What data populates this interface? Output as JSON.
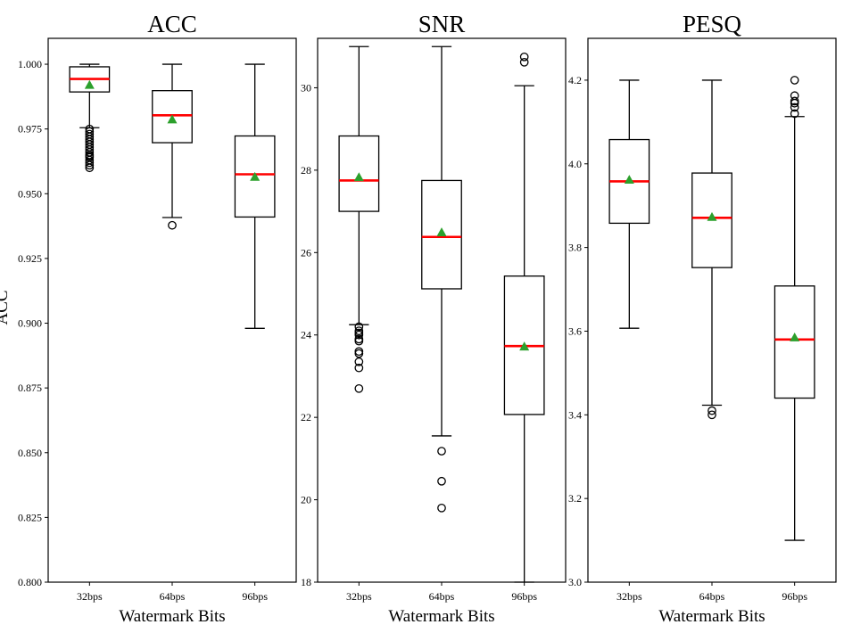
{
  "chart_data": [
    {
      "type": "box",
      "title": "ACC",
      "xlabel": "Watermark Bits",
      "ylabel": "ACC",
      "ylim": [
        0.8,
        1.01
      ],
      "yticks": [
        0.8,
        0.825,
        0.85,
        0.875,
        0.9,
        0.925,
        0.95,
        0.975,
        1.0
      ],
      "ytick_labels": [
        "0.800",
        "0.825",
        "0.850",
        "0.875",
        "0.900",
        "0.925",
        "0.950",
        "0.975",
        "1.000"
      ],
      "categories": [
        "32bps",
        "64bps",
        "96bps"
      ],
      "boxes": [
        {
          "label": "32bps",
          "whisker_low": 0.9755,
          "q1": 0.9893,
          "median": 0.9943,
          "q3": 0.999,
          "whisker_high": 1.0,
          "mean": 0.992,
          "outliers": [
            0.96,
            0.961,
            0.962,
            0.963,
            0.964,
            0.9645,
            0.965,
            0.966,
            0.967,
            0.968,
            0.969,
            0.97,
            0.971,
            0.972,
            0.973,
            0.974,
            0.975
          ]
        },
        {
          "label": "64bps",
          "whisker_low": 0.9408,
          "q1": 0.9697,
          "median": 0.9803,
          "q3": 0.9898,
          "whisker_high": 1.0,
          "mean": 0.9787,
          "outliers": [
            0.9378
          ]
        },
        {
          "label": "96bps",
          "whisker_low": 0.898,
          "q1": 0.941,
          "median": 0.9575,
          "q3": 0.9723,
          "whisker_high": 1.0,
          "mean": 0.9565,
          "outliers": []
        }
      ]
    },
    {
      "type": "box",
      "title": "SNR",
      "xlabel": "Watermark Bits",
      "ylabel": "",
      "ylim": [
        18,
        31.2
      ],
      "yticks": [
        18,
        20,
        22,
        24,
        26,
        28,
        30
      ],
      "ytick_labels": [
        "18",
        "20",
        "22",
        "24",
        "26",
        "28",
        "30"
      ],
      "categories": [
        "32bps",
        "64bps",
        "96bps"
      ],
      "boxes": [
        {
          "label": "32bps",
          "whisker_low": 24.25,
          "q1": 27.0,
          "median": 27.75,
          "q3": 28.83,
          "whisker_high": 31.0,
          "mean": 27.83,
          "outliers": [
            24.2,
            24.1,
            24.05,
            24.0,
            23.9,
            23.85,
            23.6,
            23.55,
            23.35,
            23.2,
            22.7
          ]
        },
        {
          "label": "64bps",
          "whisker_low": 21.55,
          "q1": 25.12,
          "median": 26.38,
          "q3": 27.75,
          "whisker_high": 31.0,
          "mean": 26.49,
          "outliers": [
            21.18,
            20.45,
            19.8
          ]
        },
        {
          "label": "96bps",
          "whisker_low": 18.0,
          "q1": 22.07,
          "median": 23.73,
          "q3": 25.43,
          "whisker_high": 30.05,
          "mean": 23.72,
          "outliers": [
            30.62,
            30.75
          ]
        }
      ]
    },
    {
      "type": "box",
      "title": "PESQ",
      "xlabel": "Watermark Bits",
      "ylabel": "",
      "ylim": [
        3.0,
        4.3
      ],
      "yticks": [
        3.0,
        3.2,
        3.4,
        3.6,
        3.8,
        4.0,
        4.2
      ],
      "ytick_labels": [
        "3.0",
        "3.2",
        "3.4",
        "3.6",
        "3.8",
        "4.0",
        "4.2"
      ],
      "categories": [
        "32bps",
        "64bps",
        "96bps"
      ],
      "boxes": [
        {
          "label": "32bps",
          "whisker_low": 3.607,
          "q1": 3.858,
          "median": 3.958,
          "q3": 4.058,
          "whisker_high": 4.2,
          "mean": 3.962,
          "outliers": []
        },
        {
          "label": "64bps",
          "whisker_low": 3.423,
          "q1": 3.752,
          "median": 3.871,
          "q3": 3.978,
          "whisker_high": 4.2,
          "mean": 3.873,
          "outliers": [
            3.41,
            3.4
          ]
        },
        {
          "label": "96bps",
          "whisker_low": 3.1,
          "q1": 3.44,
          "median": 3.58,
          "q3": 3.708,
          "whisker_high": 4.113,
          "mean": 3.585,
          "outliers": [
            4.12,
            4.135,
            4.145,
            4.15,
            4.163,
            4.2
          ]
        }
      ]
    }
  ],
  "colors": {
    "box": "#000000",
    "median": "#ff0000",
    "mean": "#2ca02c",
    "outlier_edge": "#000000"
  }
}
